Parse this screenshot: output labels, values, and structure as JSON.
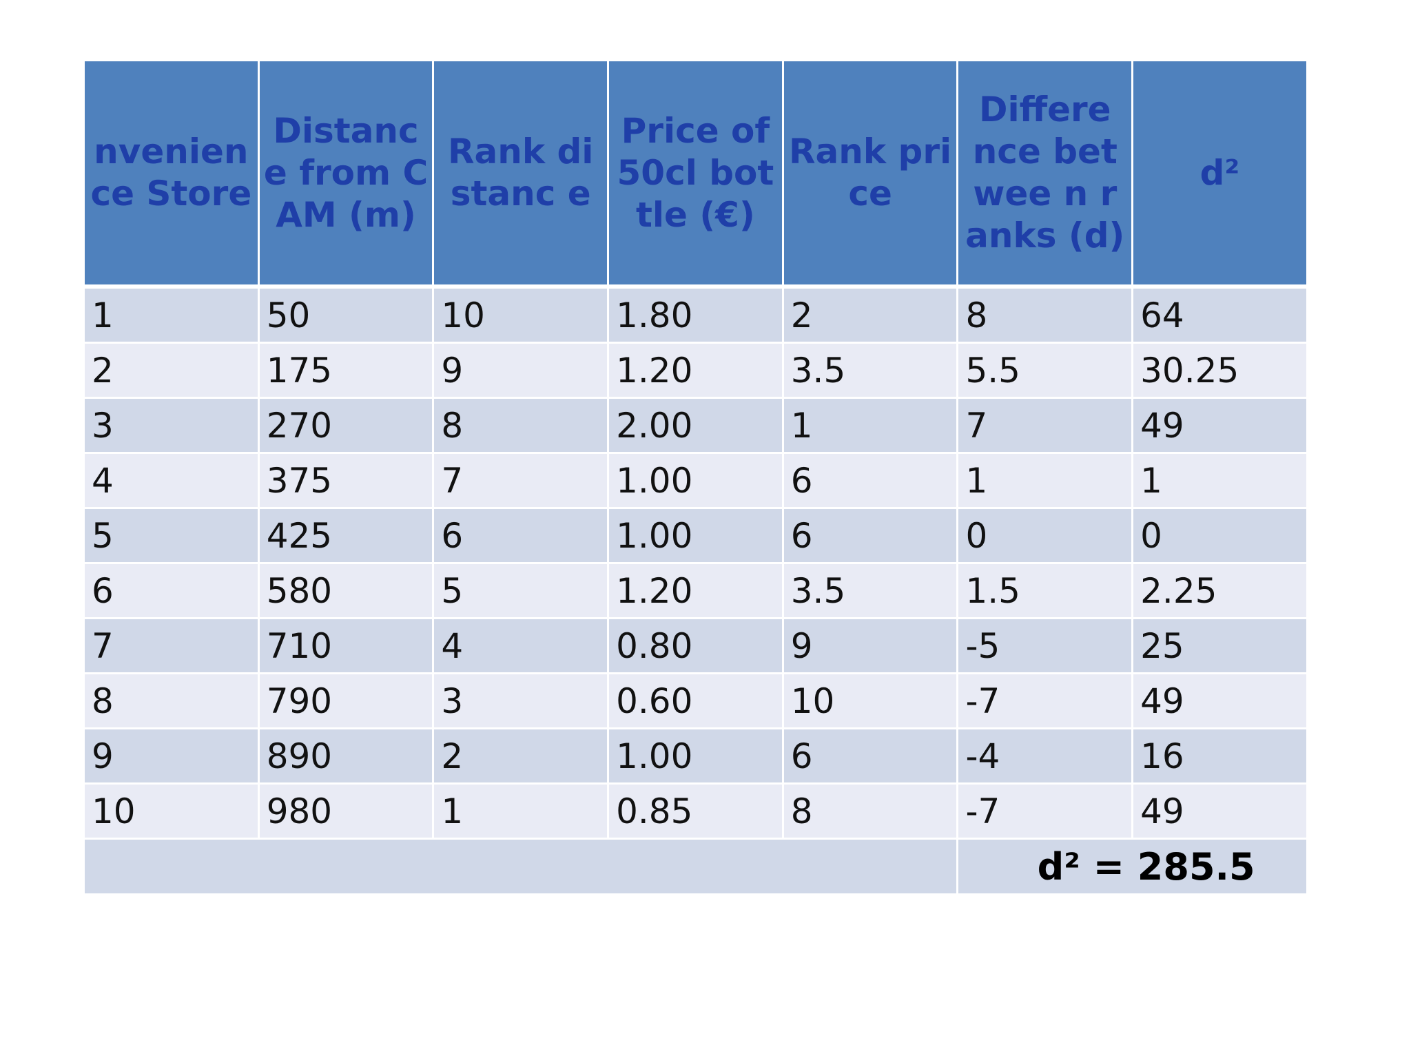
{
  "table": {
    "headers": [
      "nvenien ce Store",
      "Distanc e from CAM (m)",
      "Rank distanc e",
      "Price of 50cl bottle (€)",
      "Rank price",
      "Differe nce betwee n ranks (d)",
      "d²"
    ],
    "rows": [
      [
        "1",
        "50",
        "10",
        "1.80",
        "2",
        "8",
        "64"
      ],
      [
        "2",
        "175",
        "9",
        "1.20",
        "3.5",
        "5.5",
        "30.25"
      ],
      [
        "3",
        "270",
        "8",
        "2.00",
        "1",
        "7",
        "49"
      ],
      [
        "4",
        "375",
        "7",
        "1.00",
        "6",
        "1",
        "1"
      ],
      [
        "5",
        "425",
        "6",
        "1.00",
        "6",
        "0",
        "0"
      ],
      [
        "6",
        "580",
        "5",
        "1.20",
        "3.5",
        "1.5",
        "2.25"
      ],
      [
        "7",
        "710",
        "4",
        "0.80",
        "9",
        "-5",
        "25"
      ],
      [
        "8",
        "790",
        "3",
        "0.60",
        "10",
        "-7",
        "49"
      ],
      [
        "9",
        "890",
        "2",
        "1.00",
        "6",
        "-4",
        "16"
      ],
      [
        "10",
        "980",
        "1",
        "0.85",
        "8",
        "-7",
        "49"
      ]
    ],
    "total_label": "d² = 285.5"
  },
  "colors": {
    "header_bg": "#4f81bd",
    "header_text": "#1f3fa8",
    "row_odd": "#d0d8e8",
    "row_even": "#e9ebf5"
  }
}
